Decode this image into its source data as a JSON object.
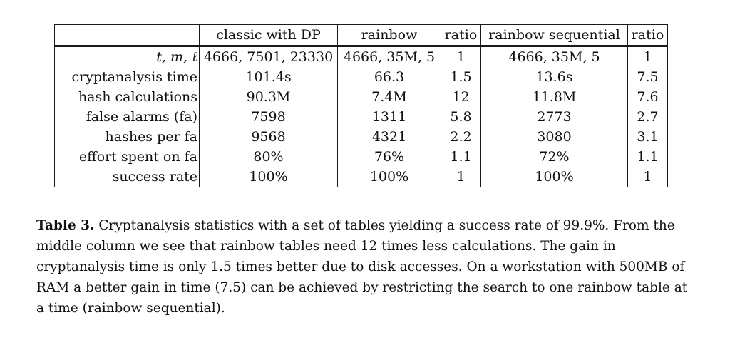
{
  "table": {
    "headers": [
      "",
      "classic with DP",
      "rainbow",
      "ratio",
      "rainbow sequential",
      "ratio"
    ],
    "rows": [
      {
        "label": "t, m, ℓ",
        "cells": [
          "4666, 7501, 23330",
          "4666, 35M, 5",
          "1",
          "4666, 35M, 5",
          "1"
        ]
      },
      {
        "label": "cryptanalysis time",
        "cells": [
          "101.4s",
          "66.3",
          "1.5",
          "13.6s",
          "7.5"
        ]
      },
      {
        "label": "hash calculations",
        "cells": [
          "90.3M",
          "7.4M",
          "12",
          "11.8M",
          "7.6"
        ]
      },
      {
        "label": "false alarms (fa)",
        "cells": [
          "7598",
          "1311",
          "5.8",
          "2773",
          "2.7"
        ]
      },
      {
        "label": "hashes per fa",
        "cells": [
          "9568",
          "4321",
          "2.2",
          "3080",
          "3.1"
        ]
      },
      {
        "label": "effort spent on fa",
        "cells": [
          "80%",
          "76%",
          "1.1",
          "72%",
          "1.1"
        ]
      },
      {
        "label": "success rate",
        "cells": [
          "100%",
          "100%",
          "1",
          "100%",
          "1"
        ]
      }
    ]
  },
  "caption": {
    "label": "Table 3.",
    "text": " Cryptanalysis statistics with a set of tables yielding a success rate of 99.9%. From the middle column we see that rainbow tables need 12 times less calculations. The gain in cryptanalysis time is only 1.5 times better due to disk accesses. On a workstation with 500MB of RAM a better gain in time (7.5) can be achieved by restricting the search to one rainbow table at a time (rainbow sequential)."
  }
}
